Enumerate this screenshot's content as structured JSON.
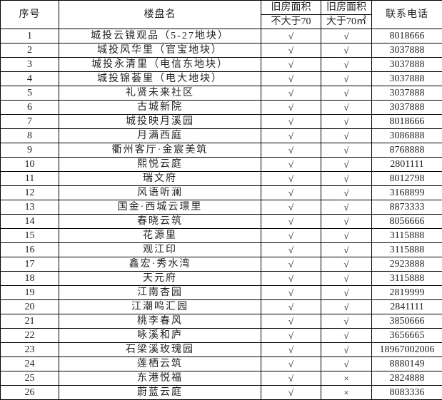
{
  "headers": {
    "index": "序号",
    "name": "楼盘名",
    "old_area_top": "旧房面积",
    "old_area_le70": "不大于70",
    "old_area_top2": "旧房面积",
    "old_area_gt70": "大于70㎡",
    "phone": "联系电话"
  },
  "rows": [
    {
      "no": "1",
      "name": "城投云镜观品（5-27地块）",
      "le70": "√",
      "gt70": "√",
      "phone": "8018666"
    },
    {
      "no": "2",
      "name": "城投风华里（官宝地块）",
      "le70": "√",
      "gt70": "√",
      "phone": "3037888"
    },
    {
      "no": "3",
      "name": "城投永清里（电信东地块）",
      "le70": "√",
      "gt70": "√",
      "phone": "3037888"
    },
    {
      "no": "4",
      "name": "城投锦荟里（电大地块）",
      "le70": "√",
      "gt70": "√",
      "phone": "3037888"
    },
    {
      "no": "5",
      "name": "礼贤未来社区",
      "le70": "√",
      "gt70": "√",
      "phone": "3037888"
    },
    {
      "no": "6",
      "name": "古城新院",
      "le70": "√",
      "gt70": "√",
      "phone": "3037888"
    },
    {
      "no": "7",
      "name": "城投映月溪园",
      "le70": "√",
      "gt70": "√",
      "phone": "8018666"
    },
    {
      "no": "8",
      "name": "月满西庭",
      "le70": "√",
      "gt70": "√",
      "phone": "3086888"
    },
    {
      "no": "9",
      "name": "衢州客厅·金宸美筑",
      "le70": "√",
      "gt70": "√",
      "phone": "8768888"
    },
    {
      "no": "10",
      "name": "熙悦云庭",
      "le70": "√",
      "gt70": "√",
      "phone": "2801111"
    },
    {
      "no": "11",
      "name": "瑞文府",
      "le70": "√",
      "gt70": "√",
      "phone": "8012798"
    },
    {
      "no": "12",
      "name": "风语听澜",
      "le70": "√",
      "gt70": "√",
      "phone": "3168899"
    },
    {
      "no": "13",
      "name": "国金·西城云璟里",
      "le70": "√",
      "gt70": "√",
      "phone": "8873333"
    },
    {
      "no": "14",
      "name": "春晓云筑",
      "le70": "√",
      "gt70": "√",
      "phone": "8056666"
    },
    {
      "no": "15",
      "name": "花源里",
      "le70": "√",
      "gt70": "√",
      "phone": "3115888"
    },
    {
      "no": "16",
      "name": "观江印",
      "le70": "√",
      "gt70": "√",
      "phone": "3115888"
    },
    {
      "no": "17",
      "name": "鑫宏·秀水湾",
      "le70": "√",
      "gt70": "√",
      "phone": "2923888"
    },
    {
      "no": "18",
      "name": "天元府",
      "le70": "√",
      "gt70": "√",
      "phone": "3115888"
    },
    {
      "no": "19",
      "name": "江南杏园",
      "le70": "√",
      "gt70": "√",
      "phone": "2819999"
    },
    {
      "no": "20",
      "name": "江潮鸣汇园",
      "le70": "√",
      "gt70": "√",
      "phone": "2841111"
    },
    {
      "no": "21",
      "name": "桃李春风",
      "le70": "√",
      "gt70": "√",
      "phone": "3850666"
    },
    {
      "no": "22",
      "name": "咏溪和庐",
      "le70": "√",
      "gt70": "√",
      "phone": "3656665"
    },
    {
      "no": "23",
      "name": "石梁溪玫瑰园",
      "le70": "√",
      "gt70": "√",
      "phone": "18967002006"
    },
    {
      "no": "24",
      "name": "莲栖云筑",
      "le70": "√",
      "gt70": "√",
      "phone": "8880149"
    },
    {
      "no": "25",
      "name": "东港悦福",
      "le70": "√",
      "gt70": "×",
      "phone": "2824888"
    },
    {
      "no": "26",
      "name": "蔚蓝云庭",
      "le70": "√",
      "gt70": "×",
      "phone": "8083336"
    }
  ]
}
